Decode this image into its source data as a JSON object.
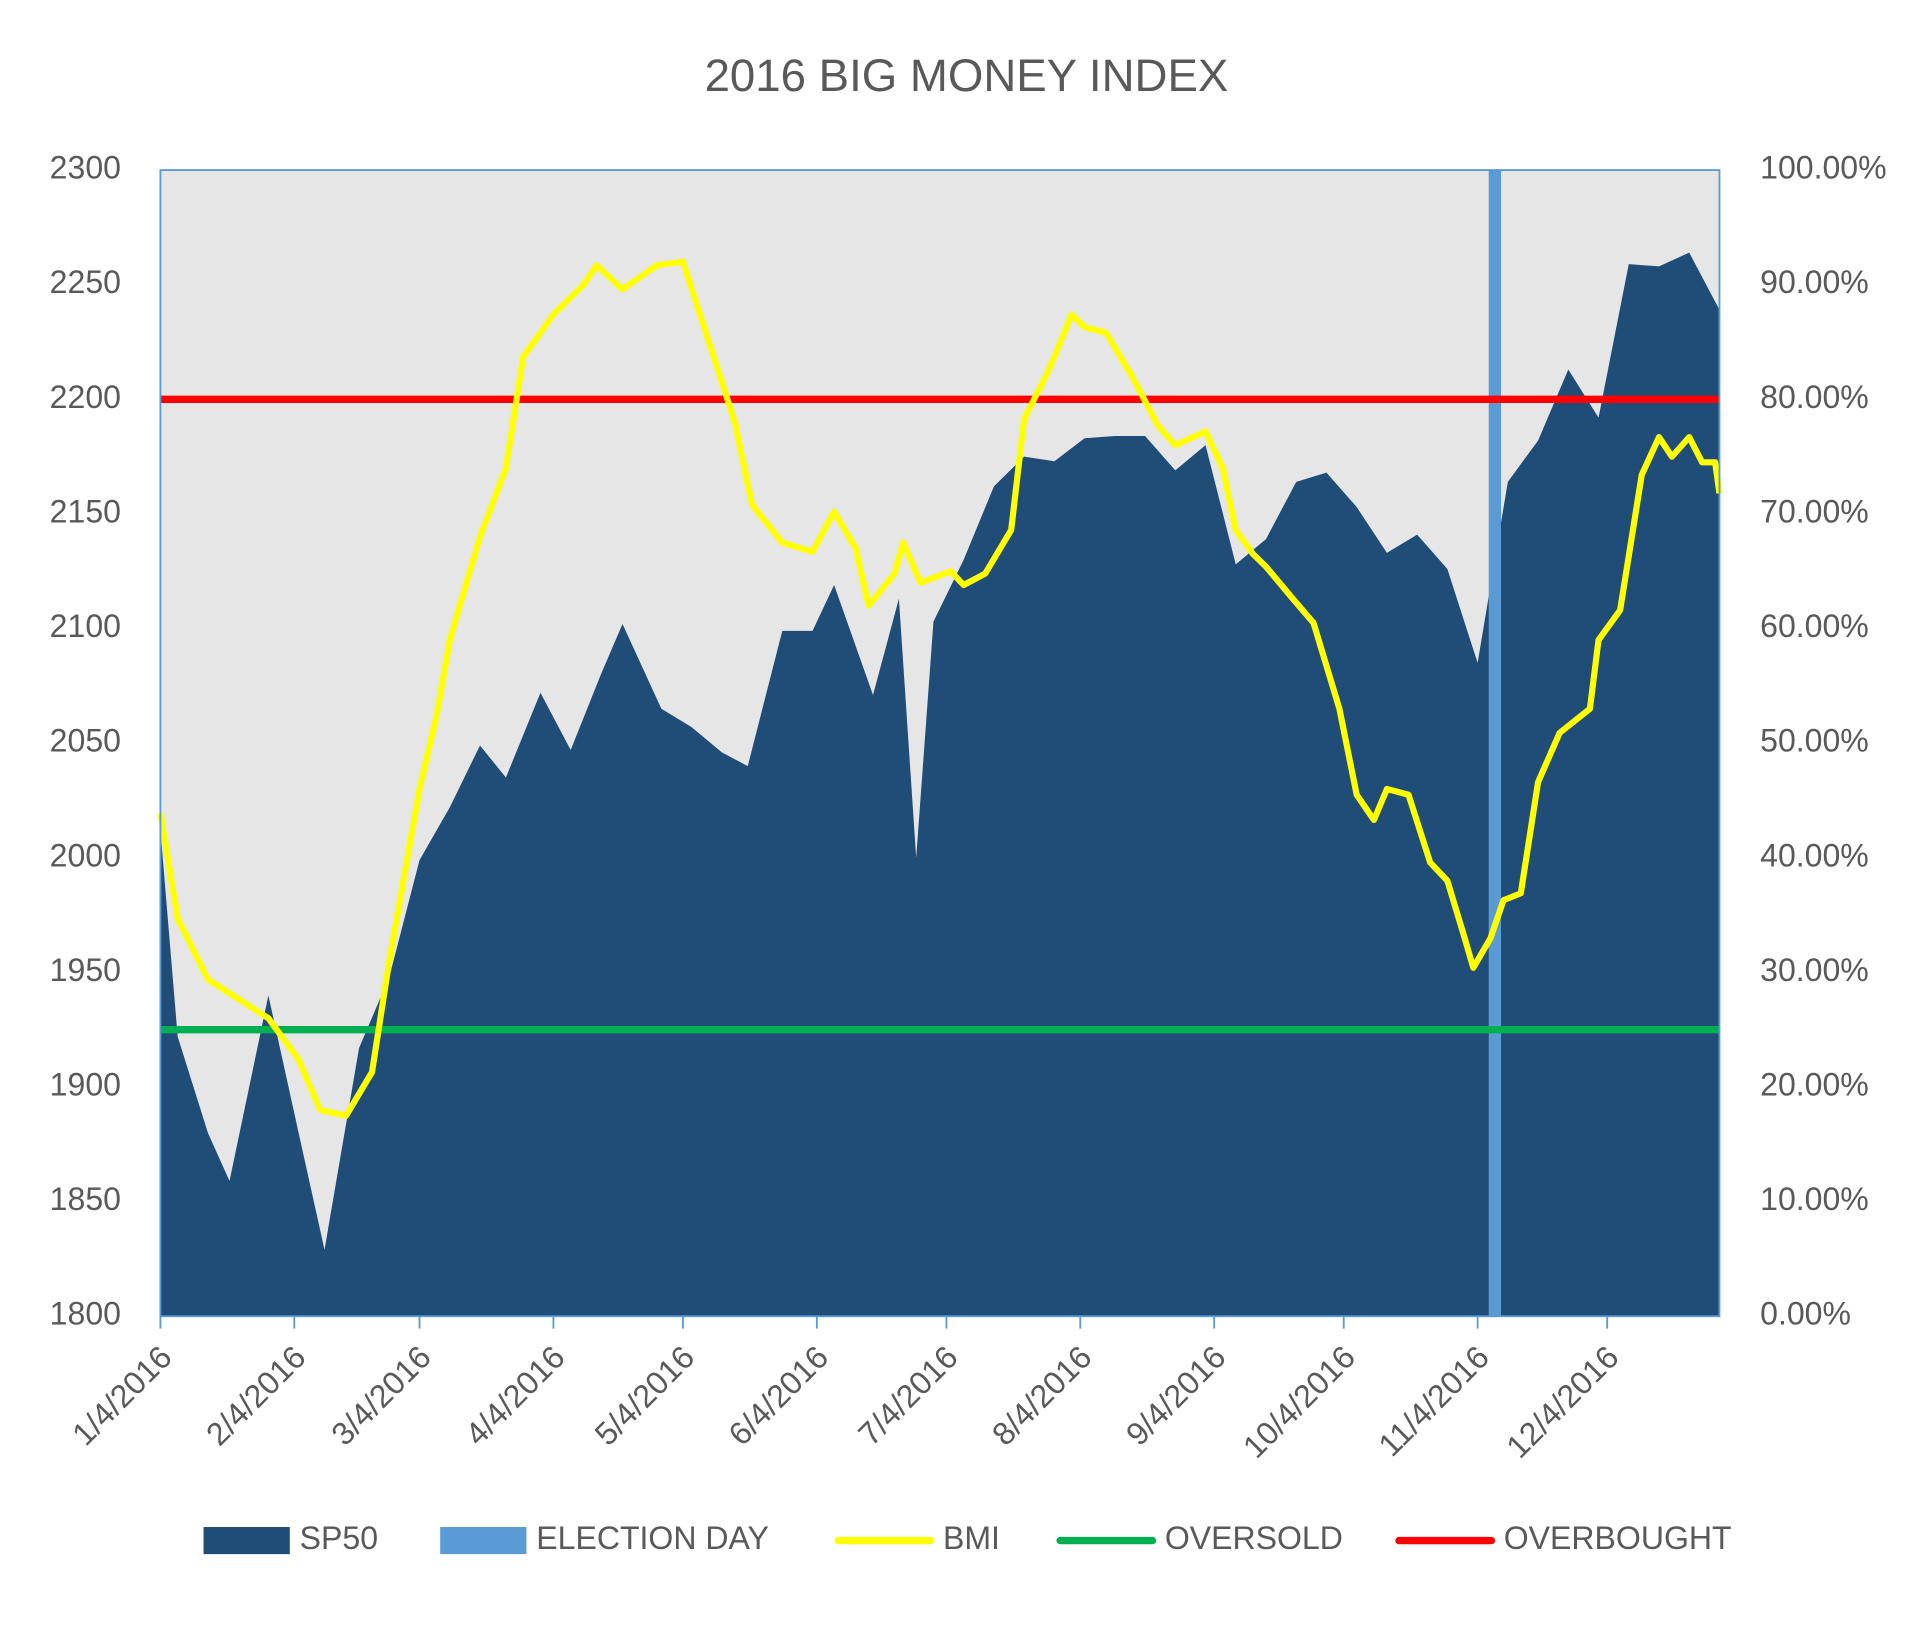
{
  "chart_data": {
    "type": "area-line",
    "title": "2016 BIG MONEY INDEX",
    "xlim": [
      "1/4/2016",
      "12/30/2016"
    ],
    "xticks": [
      "1/4/2016",
      "2/4/2016",
      "3/4/2016",
      "4/4/2016",
      "5/4/2016",
      "6/4/2016",
      "7/4/2016",
      "8/4/2016",
      "9/4/2016",
      "10/4/2016",
      "11/4/2016",
      "12/4/2016"
    ],
    "ylim": [
      1800,
      2300
    ],
    "yticks": [
      1800,
      1850,
      1900,
      1950,
      2000,
      2050,
      2100,
      2150,
      2200,
      2250,
      2300
    ],
    "y2lim": [
      0,
      100
    ],
    "y2ticks": [
      {
        "value": 0,
        "label": "0.00%"
      },
      {
        "value": 10,
        "label": "10.00%"
      },
      {
        "value": 20,
        "label": "20.00%"
      },
      {
        "value": 30,
        "label": "30.00%"
      },
      {
        "value": 40,
        "label": "40.00%"
      },
      {
        "value": 50,
        "label": "50.00%"
      },
      {
        "value": 60,
        "label": "60.00%"
      },
      {
        "value": 70,
        "label": "70.00%"
      },
      {
        "value": 80,
        "label": "80.00%"
      },
      {
        "value": 90,
        "label": "90.00%"
      },
      {
        "value": 100,
        "label": "100.00%"
      }
    ],
    "series": [
      {
        "name": "SP50",
        "color": "#204d78",
        "kind": "area",
        "x": [
          "1/4/2016",
          "1/8/2016",
          "1/15/2016",
          "1/20/2016",
          "1/29/2016",
          "2/5/2016",
          "2/11/2016",
          "2/19/2016",
          "2/26/2016",
          "3/4/2016",
          "3/11/2016",
          "3/18/2016",
          "3/24/2016",
          "4/1/2016",
          "4/8/2016",
          "4/15/2016",
          "4/20/2016",
          "4/29/2016",
          "5/6/2016",
          "5/13/2016",
          "5/19/2016",
          "5/27/2016",
          "6/3/2016",
          "6/8/2016",
          "6/17/2016",
          "6/23/2016",
          "6/27/2016",
          "7/1/2016",
          "7/8/2016",
          "7/15/2016",
          "7/22/2016",
          "7/29/2016",
          "8/5/2016",
          "8/12/2016",
          "8/19/2016",
          "8/26/2016",
          "9/2/2016",
          "9/9/2016",
          "9/16/2016",
          "9/23/2016",
          "9/30/2016",
          "10/7/2016",
          "10/14/2016",
          "10/21/2016",
          "10/28/2016",
          "11/4/2016",
          "11/11/2016",
          "11/18/2016",
          "11/25/2016",
          "12/2/2016",
          "12/9/2016",
          "12/16/2016",
          "12/23/2016",
          "12/30/2016"
        ],
        "values": [
          2012,
          1922,
          1880,
          1859,
          1940,
          1880,
          1829,
          1917,
          1948,
          1999,
          2022,
          2049,
          2035,
          2072,
          2047,
          2080,
          2102,
          2065,
          2057,
          2046,
          2040,
          2099,
          2099,
          2119,
          2071,
          2113,
          2000,
          2103,
          2130,
          2162,
          2175,
          2173,
          2183,
          2184,
          2184,
          2169,
          2180,
          2128,
          2139,
          2164,
          2168,
          2153,
          2133,
          2141,
          2126,
          2085,
          2164,
          2182,
          2213,
          2192,
          2259,
          2258,
          2264,
          2239
        ]
      },
      {
        "name": "ELECTION DAY",
        "color": "#5b9bd5",
        "kind": "vband",
        "x": "11/8/2016"
      },
      {
        "name": "BMI",
        "color": "#ffff00",
        "kind": "line",
        "axis": "y2",
        "x": [
          "1/4/2016",
          "1/8/2016",
          "1/15/2016",
          "1/22/2016",
          "1/29/2016",
          "2/5/2016",
          "2/10/2016",
          "2/16/2016",
          "2/22/2016",
          "2/26/2016",
          "3/4/2016",
          "3/8/2016",
          "3/11/2016",
          "3/18/2016",
          "3/24/2016",
          "3/28/2016",
          "4/4/2016",
          "4/11/2016",
          "4/14/2016",
          "4/20/2016",
          "4/28/2016",
          "5/4/2016",
          "5/10/2016",
          "5/16/2016",
          "5/20/2016",
          "5/27/2016",
          "6/3/2016",
          "6/8/2016",
          "6/13/2016",
          "6/16/2016",
          "6/22/2016",
          "6/24/2016",
          "6/28/2016",
          "7/5/2016",
          "7/8/2016",
          "7/13/2016",
          "7/19/2016",
          "7/22/2016",
          "7/27/2016",
          "7/29/2016",
          "8/2/2016",
          "8/5/2016",
          "8/10/2016",
          "8/16/2016",
          "8/22/2016",
          "8/26/2016",
          "9/2/2016",
          "9/6/2016",
          "9/9/2016",
          "9/13/2016",
          "9/16/2016",
          "9/22/2016",
          "9/27/2016",
          "10/3/2016",
          "10/7/2016",
          "10/11/2016",
          "10/14/2016",
          "10/19/2016",
          "10/24/2016",
          "10/28/2016",
          "11/1/2016",
          "11/3/2016",
          "11/7/2016",
          "11/10/2016",
          "11/14/2016",
          "11/18/2016",
          "11/23/2016",
          "11/30/2016",
          "12/2/2016",
          "12/7/2016",
          "12/12/2016",
          "12/16/2016",
          "12/19/2016",
          "12/23/2016",
          "12/26/2016",
          "12/29/2016",
          "12/30/2016"
        ],
        "values": [
          43.9,
          34.7,
          29.4,
          27.7,
          26,
          22.4,
          18,
          17.5,
          21.3,
          31,
          46,
          52.5,
          59,
          68,
          74,
          83.7,
          87.4,
          90,
          91.7,
          89.6,
          91.7,
          92,
          85,
          78,
          70.8,
          67.5,
          66.7,
          70.2,
          67,
          62,
          64.8,
          67.5,
          64,
          65,
          63.8,
          64.8,
          68.6,
          78.3,
          82,
          83.7,
          87.4,
          86.3,
          85.8,
          82,
          77.7,
          76,
          77.2,
          74,
          68.6,
          66.5,
          65.4,
          62.7,
          60.5,
          53,
          45.5,
          43.3,
          46,
          45.5,
          39.6,
          38,
          33,
          30.4,
          33,
          36.3,
          36.9,
          46.6,
          50.9,
          53,
          59,
          61.6,
          73.4,
          76.7,
          75,
          76.7,
          74.5,
          74.5,
          71.8
        ]
      },
      {
        "name": "OVERSOLD",
        "color": "#00b050",
        "kind": "hline",
        "axis": "y2",
        "value": 25
      },
      {
        "name": "OVERBOUGHT",
        "color": "#ff0000",
        "kind": "hline",
        "axis": "y2",
        "value": 80
      }
    ]
  }
}
